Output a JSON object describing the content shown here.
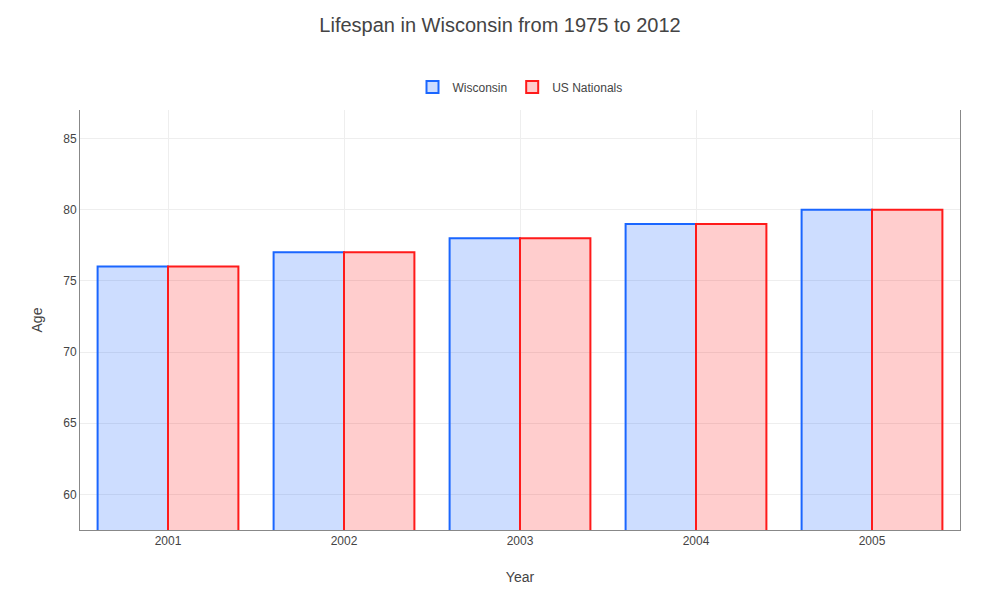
{
  "chart_data": {
    "type": "bar",
    "title": "Lifespan in Wisconsin from 1975 to 2012",
    "x_label": "Year",
    "y_label": "Age",
    "categories": [
      "2001",
      "2002",
      "2003",
      "2004",
      "2005"
    ],
    "series": [
      {
        "name": "Wisconsin",
        "color": "#1a66ff",
        "values": [
          76,
          77,
          78,
          79,
          80
        ]
      },
      {
        "name": "US Nationals",
        "color": "#ff1a1a",
        "values": [
          76,
          77,
          78,
          79,
          80
        ]
      }
    ],
    "ylim": [
      57.5,
      87
    ],
    "yticks": [
      60,
      65,
      70,
      75,
      80,
      85
    ],
    "grid": true,
    "legend": "upper center"
  }
}
